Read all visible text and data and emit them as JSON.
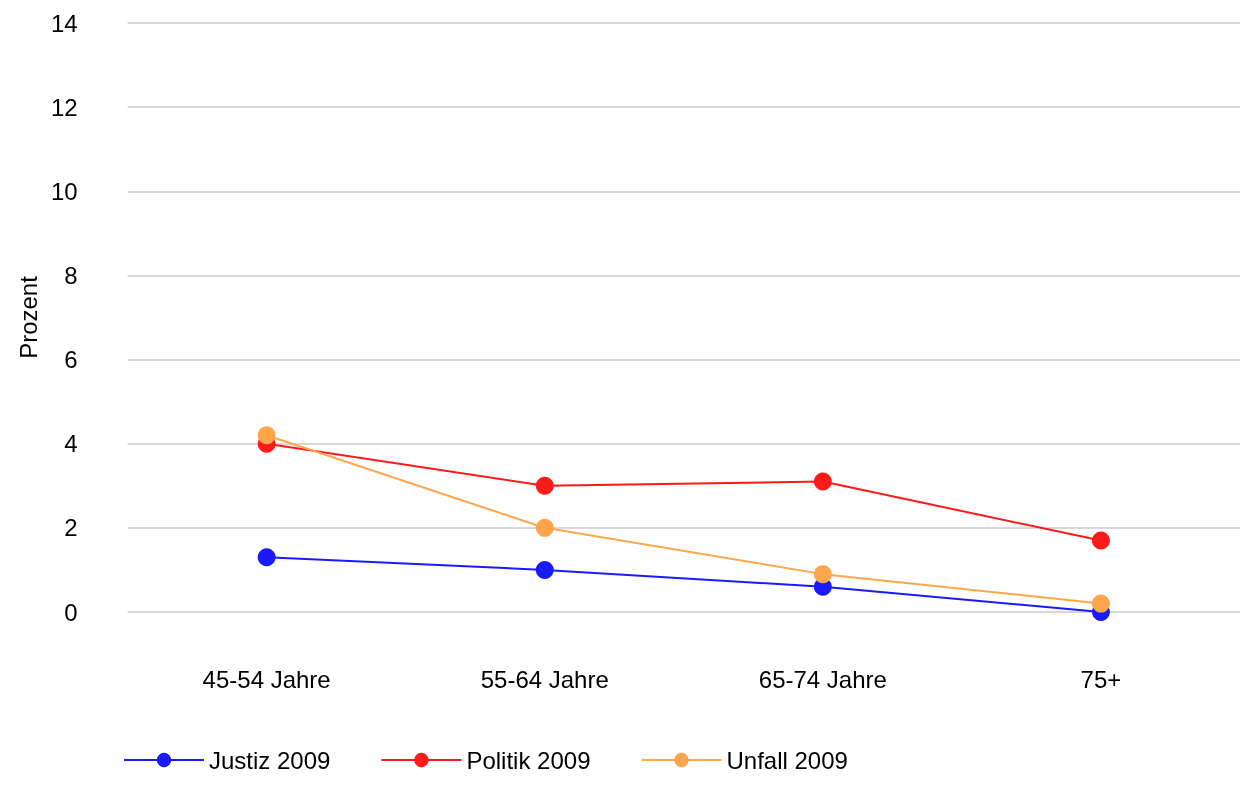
{
  "chart_data": {
    "type": "line",
    "ylabel": "Prozent",
    "categories": [
      "45-54 Jahre",
      "55-64 Jahre",
      "65-74 Jahre",
      "75+"
    ],
    "series": [
      {
        "name": "Justiz 2009",
        "color": "#1a1aff",
        "values": [
          1.3,
          1.0,
          0.6,
          0.0
        ]
      },
      {
        "name": "Politik 2009",
        "color": "#ff1a1a",
        "values": [
          4.0,
          3.0,
          3.1,
          1.7
        ]
      },
      {
        "name": "Unfall 2009",
        "color": "#ffa64d",
        "values": [
          4.2,
          2.0,
          0.9,
          0.2
        ]
      }
    ],
    "ylim": [
      0,
      14
    ],
    "yticks": [
      0,
      2,
      4,
      6,
      8,
      10,
      12,
      14
    ],
    "grid": "y",
    "legend": "bottom left",
    "marker": "circle",
    "line_style": "solid"
  }
}
